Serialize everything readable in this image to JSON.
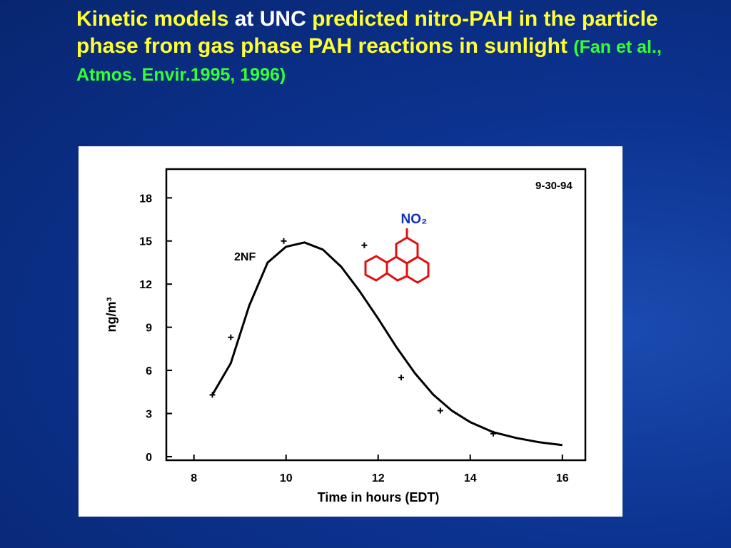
{
  "slide": {
    "title": [
      {
        "text": "Kinetic models",
        "color": "#ffff33"
      },
      {
        "text": "at",
        "color": "#ffffff"
      },
      {
        "text": "UNC",
        "color": "#ffffff"
      },
      {
        "text": "predicted nitro-PAH in the particle phase from gas phase PAH reactions in sunlight",
        "color": "#ffff33"
      },
      {
        "text": "(Fan et al., Atmos. Envir.1995, 1996)",
        "color": "#33ff33",
        "small": true
      }
    ]
  },
  "chart_data": {
    "type": "line",
    "xlabel": "Time in hours (EDT)",
    "ylabel": "ng/m³",
    "annotations": {
      "date": "9-30-94",
      "curve": "2NF",
      "molecule": "NO₂"
    },
    "xlim": [
      7.4,
      16.5
    ],
    "xticks": [
      8,
      10,
      12,
      14,
      16
    ],
    "ylim": [
      -0.25,
      20
    ],
    "yticks": [
      0,
      3,
      6,
      9,
      12,
      15,
      18
    ],
    "grid": false,
    "series": [
      {
        "name": "2NF",
        "color": "#000000",
        "x": [
          8.4,
          8.8,
          9.2,
          9.6,
          10,
          10.4,
          10.8,
          11.2,
          11.6,
          12,
          12.4,
          12.8,
          13.2,
          13.6,
          14,
          14.5,
          15,
          15.5,
          16
        ],
        "values": [
          4.3,
          6.5,
          10.5,
          13.5,
          14.6,
          14.9,
          14.4,
          13.2,
          11.5,
          9.6,
          7.6,
          5.8,
          4.3,
          3.2,
          2.4,
          1.7,
          1.3,
          1.0,
          0.8
        ]
      }
    ],
    "points": {
      "color": "#000000",
      "x": [
        8.4,
        8.8,
        9.95,
        11.7,
        12.5,
        13.35,
        14.5
      ],
      "values": [
        4.3,
        8.3,
        15,
        14.7,
        5.5,
        3.2,
        1.6
      ]
    }
  }
}
